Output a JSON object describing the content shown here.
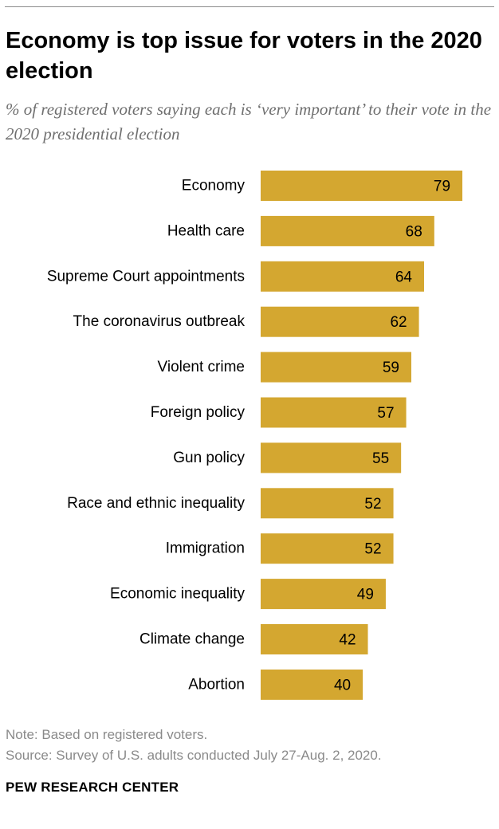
{
  "header": {
    "title": "Economy is top issue for voters in the 2020 election",
    "subtitle": "% of registered voters saying each is ‘very important’ to their vote in the 2020 presidential election"
  },
  "footer": {
    "note": "Note: Based on registered voters.",
    "source": "Source: Survey of U.S. adults conducted July 27-Aug. 2, 2020.",
    "brand": "PEW RESEARCH CENTER"
  },
  "colors": {
    "bar": "#d4a730",
    "muted_text": "#8a8a8a"
  },
  "chart_data": {
    "type": "bar",
    "orientation": "horizontal",
    "title": "Economy is top issue for voters in the 2020 election",
    "subtitle": "% of registered voters saying each is ‘very important’ to their vote in the 2020 presidential election",
    "categories": [
      "Economy",
      "Health care",
      "Supreme Court appointments",
      "The coronavirus outbreak",
      "Violent crime",
      "Foreign policy",
      "Gun policy",
      "Race and ethnic inequality",
      "Immigration",
      "Economic inequality",
      "Climate change",
      "Abortion"
    ],
    "values": [
      79,
      68,
      64,
      62,
      59,
      57,
      55,
      52,
      52,
      49,
      42,
      40
    ],
    "xlabel": "",
    "ylabel": "",
    "grid": false,
    "legend": "none"
  }
}
